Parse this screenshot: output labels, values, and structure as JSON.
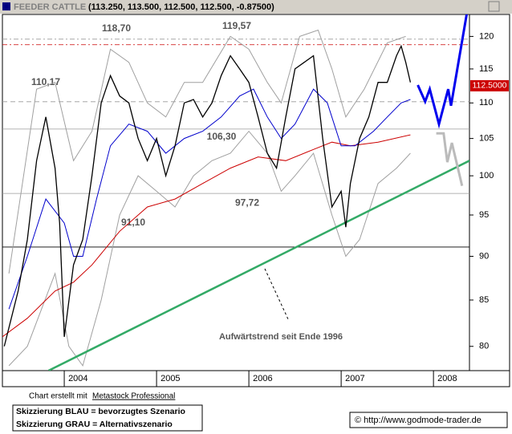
{
  "chart_data": {
    "type": "line",
    "title": "FEEDER CATTLE",
    "quote": "(113.250, 113.500, 112.500, 112.500, -0.87500)",
    "log_scale": true,
    "xlim": [
      2003.33,
      2008.39
    ],
    "ylim": [
      77.5,
      123.5
    ],
    "xticks": [
      2004,
      2005,
      2006,
      2007,
      2008
    ],
    "yticks": [
      80,
      85,
      90,
      95,
      100,
      105,
      110,
      115,
      120
    ],
    "last": {
      "value": 112.5,
      "label": "112.5000"
    },
    "price": {
      "color": "#000000",
      "x": [
        2003.35,
        2003.5,
        2003.6,
        2003.7,
        2003.8,
        2003.9,
        2003.95,
        2004.0,
        2004.1,
        2004.2,
        2004.3,
        2004.4,
        2004.5,
        2004.6,
        2004.7,
        2004.8,
        2004.9,
        2005.0,
        2005.1,
        2005.2,
        2005.3,
        2005.4,
        2005.5,
        2005.6,
        2005.7,
        2005.8,
        2005.9,
        2006.0,
        2006.1,
        2006.2,
        2006.3,
        2006.4,
        2006.5,
        2006.6,
        2006.7,
        2006.8,
        2006.9,
        2007.0,
        2007.05,
        2007.1,
        2007.2,
        2007.3,
        2007.4,
        2007.5,
        2007.6,
        2007.65,
        2007.7,
        2007.75
      ],
      "values": [
        80,
        86,
        92,
        102,
        108,
        101,
        94,
        81,
        89,
        92,
        100,
        110,
        114,
        111,
        110,
        105,
        102,
        105,
        100,
        104,
        110,
        110.5,
        108,
        110,
        114,
        117,
        115,
        113,
        108,
        103,
        101,
        108,
        115,
        116,
        117,
        105,
        96,
        98,
        93.5,
        99,
        105,
        108,
        113,
        113,
        117,
        118.5,
        116,
        113
      ]
    },
    "ma_short": {
      "color": "#0000cc",
      "x": [
        2003.4,
        2003.6,
        2003.8,
        2004.0,
        2004.1,
        2004.2,
        2004.35,
        2004.5,
        2004.7,
        2004.9,
        2005.1,
        2005.3,
        2005.5,
        2005.7,
        2005.9,
        2006.05,
        2006.2,
        2006.35,
        2006.5,
        2006.7,
        2006.85,
        2007.0,
        2007.15,
        2007.35,
        2007.5,
        2007.65,
        2007.75
      ],
      "values": [
        84,
        90,
        97,
        94,
        90,
        90,
        97,
        104,
        107,
        106,
        103,
        105,
        106,
        108,
        111,
        112,
        108,
        105,
        107,
        112,
        110,
        104,
        104,
        106,
        108,
        110,
        110.5
      ]
    },
    "ma_long": {
      "color": "#cc0000",
      "x": [
        2003.33,
        2003.6,
        2003.9,
        2004.1,
        2004.3,
        2004.6,
        2004.9,
        2005.2,
        2005.5,
        2005.8,
        2006.1,
        2006.4,
        2006.7,
        2006.9,
        2007.1,
        2007.4,
        2007.75
      ],
      "values": [
        81,
        83,
        86,
        87,
        89,
        93,
        96,
        97,
        99,
        101,
        102.5,
        102,
        103.5,
        104.5,
        104,
        104.5,
        105.5
      ]
    },
    "band_upper": {
      "color": "#a0a0a0",
      "x": [
        2003.4,
        2003.7,
        2003.9,
        2004.1,
        2004.3,
        2004.5,
        2004.7,
        2004.9,
        2005.1,
        2005.3,
        2005.5,
        2005.8,
        2006.0,
        2006.2,
        2006.35,
        2006.55,
        2006.75,
        2006.9,
        2007.05,
        2007.25,
        2007.5,
        2007.7
      ],
      "values": [
        88,
        112,
        113,
        102,
        106,
        118,
        116,
        110,
        108,
        113,
        113,
        120,
        118,
        113,
        110,
        120,
        121,
        115,
        108,
        112,
        119,
        120
      ]
    },
    "band_lower": {
      "color": "#a0a0a0",
      "x": [
        2003.4,
        2003.6,
        2003.9,
        2004.05,
        2004.2,
        2004.4,
        2004.6,
        2004.8,
        2005.0,
        2005.2,
        2005.4,
        2005.6,
        2005.8,
        2006.0,
        2006.2,
        2006.35,
        2006.5,
        2006.7,
        2006.9,
        2007.05,
        2007.2,
        2007.4,
        2007.6,
        2007.75
      ],
      "values": [
        78,
        80,
        88,
        80,
        78,
        85,
        95,
        100,
        98,
        96,
        100,
        102,
        103,
        106,
        103,
        98,
        100,
        103,
        95,
        90,
        92,
        99,
        101,
        103
      ]
    },
    "levels": [
      {
        "value": 118.7,
        "label": "118,70"
      },
      {
        "value": 119.57,
        "label": "119,57"
      },
      {
        "value": 110.17,
        "label": "110,17"
      },
      {
        "value": 106.3,
        "label": "106,30"
      },
      {
        "value": 97.72,
        "label": "97,72"
      },
      {
        "value": 91.1,
        "label": "91,10"
      }
    ],
    "trendline": {
      "color": "#33aa66",
      "label": "Aufwärtstrend seit Ende 1996",
      "x": [
        2003.83,
        2008.39
      ],
      "values": [
        77.5,
        102
      ]
    },
    "scenario_blue": {
      "color": "#0000ee",
      "x": [
        2007.83,
        2007.91,
        2007.96,
        2008.06,
        2008.16,
        2008.19,
        2008.36
      ],
      "values": [
        112.6,
        110.2,
        112,
        107,
        112,
        109.6,
        123.5
      ]
    },
    "scenario_gray": {
      "color": "#bbbbbb",
      "x": [
        2008.03,
        2008.11,
        2008.15,
        2008.2,
        2008.31
      ],
      "values": [
        105.7,
        105.7,
        101.8,
        104.4,
        98.7
      ]
    }
  },
  "footer": {
    "credit": "Chart erstellt mit",
    "software": "Metastock Professional",
    "legend": [
      "Skizzierung BLAU = bevorzugtes Szenario",
      "Skizzierung GRAU = Alternativszenario"
    ],
    "source": "© http://www.godmode-trader.de"
  }
}
